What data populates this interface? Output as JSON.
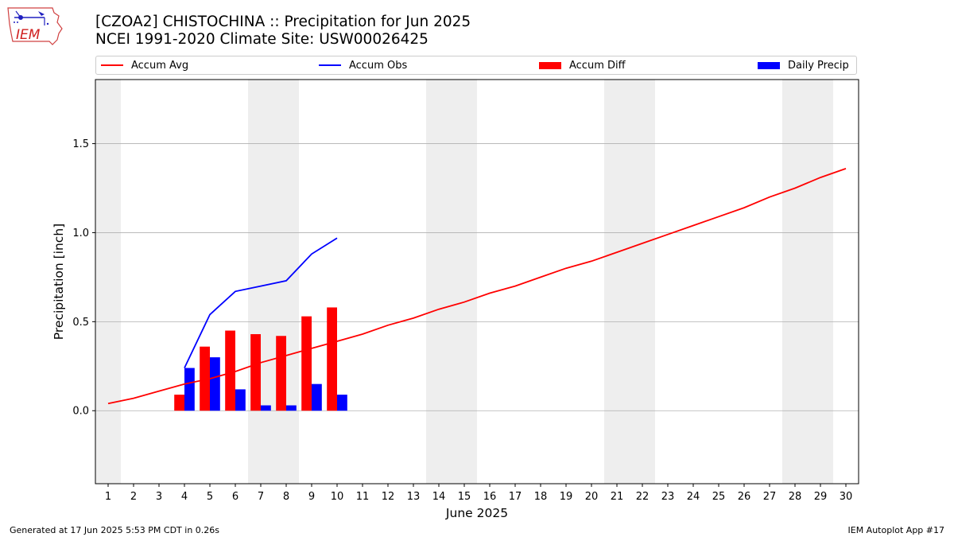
{
  "header": {
    "title_line1": "[CZOA2] CHISTOCHINA :: Precipitation for Jun 2025",
    "title_line2": "NCEI 1991-2020 Climate Site: USW00026425"
  },
  "logo": {
    "text": "IEM",
    "icon": "iem-iowa-logo-icon"
  },
  "legend": [
    {
      "label": "Accum Avg",
      "kind": "line",
      "color": "#ff0000"
    },
    {
      "label": "Accum Obs",
      "kind": "line",
      "color": "#0000ff"
    },
    {
      "label": "Accum Diff",
      "kind": "bar",
      "color": "#ff0000"
    },
    {
      "label": "Daily Precip",
      "kind": "bar",
      "color": "#0000ff"
    }
  ],
  "footer": {
    "left": "Generated at 17 Jun 2025 5:53 PM CDT in 0.26s",
    "right": "IEM Autoplot App #17"
  },
  "chart_data": {
    "type": "bar",
    "xlabel": "June 2025",
    "ylabel": "Precipitation [inch]",
    "xlim": [
      0.5,
      30.5
    ],
    "ylim": [
      -0.41,
      1.86
    ],
    "yticks": [
      0.0,
      0.5,
      1.0,
      1.5
    ],
    "ytick_labels": [
      "0.0",
      "0.5",
      "1.0",
      "1.5"
    ],
    "xticks": [
      1,
      2,
      3,
      4,
      5,
      6,
      7,
      8,
      9,
      10,
      11,
      12,
      13,
      14,
      15,
      16,
      17,
      18,
      19,
      20,
      21,
      22,
      23,
      24,
      25,
      26,
      27,
      28,
      29,
      30
    ],
    "grid": "horizontal",
    "weekend_shading": [
      [
        0.5,
        1.5
      ],
      [
        6.5,
        8.5
      ],
      [
        13.5,
        15.5
      ],
      [
        20.5,
        22.5
      ],
      [
        27.5,
        29.5
      ]
    ],
    "shade_color": "#eeeeee",
    "series": [
      {
        "name": "Accum Avg",
        "kind": "line",
        "color": "#ff0000",
        "x": [
          1,
          2,
          3,
          4,
          5,
          6,
          7,
          8,
          9,
          10,
          11,
          12,
          13,
          14,
          15,
          16,
          17,
          18,
          19,
          20,
          21,
          22,
          23,
          24,
          25,
          26,
          27,
          28,
          29,
          30
        ],
        "values": [
          0.04,
          0.07,
          0.11,
          0.15,
          0.18,
          0.22,
          0.27,
          0.31,
          0.35,
          0.39,
          0.43,
          0.48,
          0.52,
          0.57,
          0.61,
          0.66,
          0.7,
          0.75,
          0.8,
          0.84,
          0.89,
          0.94,
          0.99,
          1.04,
          1.09,
          1.14,
          1.2,
          1.25,
          1.31,
          1.36
        ]
      },
      {
        "name": "Accum Obs",
        "kind": "line",
        "color": "#0000ff",
        "x": [
          4,
          5,
          6,
          7,
          8,
          9,
          10
        ],
        "values": [
          0.24,
          0.54,
          0.67,
          0.7,
          0.73,
          0.88,
          0.97
        ]
      },
      {
        "name": "Accum Diff",
        "kind": "bar",
        "color": "#ff0000",
        "x": [
          4,
          5,
          6,
          7,
          8,
          9,
          10
        ],
        "values": [
          0.09,
          0.36,
          0.45,
          0.43,
          0.42,
          0.53,
          0.58
        ]
      },
      {
        "name": "Daily Precip",
        "kind": "bar",
        "color": "#0000ff",
        "x": [
          4,
          5,
          6,
          7,
          8,
          9,
          10
        ],
        "values": [
          0.24,
          0.3,
          0.12,
          0.03,
          0.03,
          0.15,
          0.09
        ]
      }
    ]
  }
}
